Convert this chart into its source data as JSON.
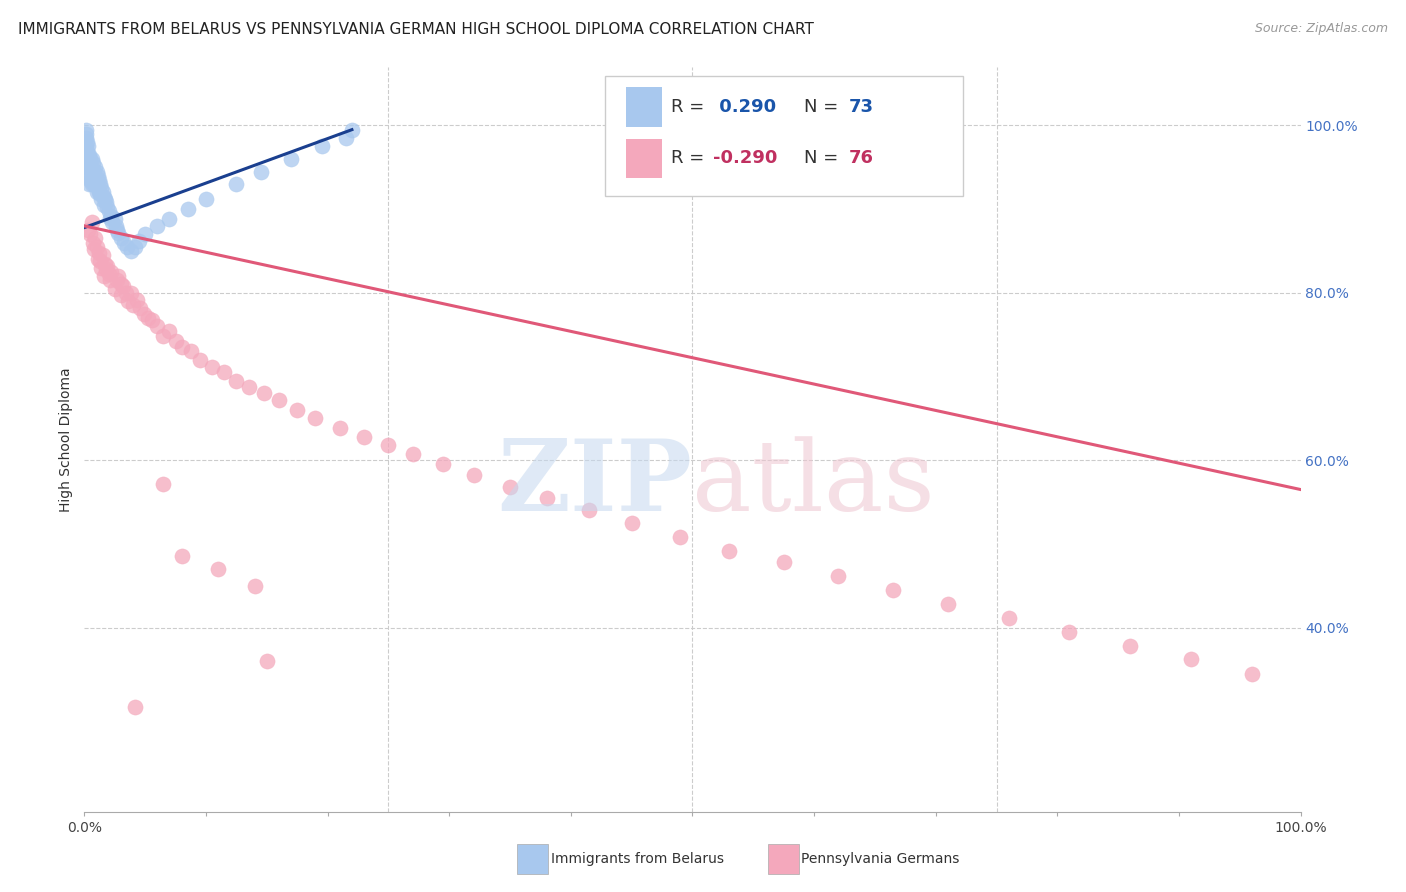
{
  "title": "IMMIGRANTS FROM BELARUS VS PENNSYLVANIA GERMAN HIGH SCHOOL DIPLOMA CORRELATION CHART",
  "source": "Source: ZipAtlas.com",
  "ylabel": "High School Diploma",
  "blue_color": "#A8C8EE",
  "pink_color": "#F4A8BC",
  "blue_line_color": "#1A3F8F",
  "pink_line_color": "#E05878",
  "watermark_zip_color": "#C8D8EE",
  "watermark_atlas_color": "#EEC8D4",
  "grid_color": "#CCCCCC",
  "background_color": "#FFFFFF",
  "right_tick_color": "#4472C4",
  "legend_r_color": "#333333",
  "legend_val_blue_color": "#1A55AA",
  "legend_val_pink_color": "#C03060",
  "title_fontsize": 11,
  "tick_fontsize": 10,
  "ylabel_fontsize": 10,
  "blue_line_x": [
    0.0,
    0.22
  ],
  "blue_line_y": [
    0.878,
    0.995
  ],
  "pink_line_x": [
    0.0,
    1.0
  ],
  "pink_line_y": [
    0.88,
    0.565
  ],
  "xlim": [
    0.0,
    1.0
  ],
  "ylim": [
    0.18,
    1.07
  ],
  "ytick_vals": [
    1.0,
    0.8,
    0.6,
    0.4
  ],
  "ytick_labels": [
    "100.0%",
    "80.0%",
    "60.0%",
    "40.0%"
  ],
  "xtick_vals": [
    0.0,
    0.5,
    1.0
  ],
  "xtick_labels": [
    "0.0%",
    "",
    "100.0%"
  ],
  "blue_N": 73,
  "pink_N": 76,
  "blue_R": "0.290",
  "pink_R": "-0.290",
  "blue_scatter_x": [
    0.0005,
    0.001,
    0.001,
    0.001,
    0.001,
    0.001,
    0.0015,
    0.0015,
    0.002,
    0.002,
    0.002,
    0.002,
    0.003,
    0.003,
    0.003,
    0.003,
    0.004,
    0.004,
    0.004,
    0.005,
    0.005,
    0.005,
    0.006,
    0.006,
    0.006,
    0.007,
    0.007,
    0.008,
    0.008,
    0.009,
    0.009,
    0.01,
    0.01,
    0.01,
    0.011,
    0.011,
    0.012,
    0.012,
    0.013,
    0.013,
    0.014,
    0.014,
    0.015,
    0.016,
    0.016,
    0.017,
    0.018,
    0.019,
    0.02,
    0.021,
    0.022,
    0.023,
    0.025,
    0.026,
    0.027,
    0.028,
    0.03,
    0.033,
    0.035,
    0.038,
    0.042,
    0.045,
    0.05,
    0.06,
    0.07,
    0.085,
    0.1,
    0.125,
    0.145,
    0.17,
    0.195,
    0.215,
    0.22
  ],
  "blue_scatter_y": [
    0.97,
    0.995,
    0.985,
    0.975,
    0.96,
    0.95,
    0.99,
    0.97,
    0.98,
    0.97,
    0.96,
    0.945,
    0.975,
    0.965,
    0.955,
    0.94,
    0.965,
    0.95,
    0.93,
    0.96,
    0.95,
    0.935,
    0.96,
    0.945,
    0.93,
    0.955,
    0.94,
    0.945,
    0.93,
    0.95,
    0.935,
    0.945,
    0.935,
    0.92,
    0.94,
    0.925,
    0.935,
    0.92,
    0.93,
    0.918,
    0.925,
    0.912,
    0.92,
    0.915,
    0.905,
    0.912,
    0.908,
    0.902,
    0.898,
    0.89,
    0.892,
    0.885,
    0.888,
    0.88,
    0.875,
    0.872,
    0.865,
    0.86,
    0.855,
    0.85,
    0.855,
    0.862,
    0.87,
    0.88,
    0.888,
    0.9,
    0.912,
    0.93,
    0.945,
    0.96,
    0.975,
    0.985,
    0.995
  ],
  "pink_scatter_x": [
    0.003,
    0.005,
    0.006,
    0.007,
    0.008,
    0.009,
    0.01,
    0.011,
    0.012,
    0.013,
    0.014,
    0.015,
    0.016,
    0.017,
    0.018,
    0.019,
    0.02,
    0.021,
    0.022,
    0.025,
    0.027,
    0.028,
    0.03,
    0.03,
    0.032,
    0.034,
    0.036,
    0.038,
    0.04,
    0.043,
    0.046,
    0.049,
    0.052,
    0.056,
    0.06,
    0.065,
    0.07,
    0.075,
    0.08,
    0.088,
    0.095,
    0.105,
    0.115,
    0.125,
    0.135,
    0.148,
    0.16,
    0.175,
    0.19,
    0.21,
    0.23,
    0.25,
    0.27,
    0.295,
    0.32,
    0.35,
    0.38,
    0.415,
    0.45,
    0.49,
    0.53,
    0.575,
    0.62,
    0.665,
    0.71,
    0.76,
    0.81,
    0.86,
    0.91,
    0.96,
    0.065,
    0.08,
    0.11,
    0.14,
    0.042,
    0.15
  ],
  "pink_scatter_y": [
    0.875,
    0.87,
    0.885,
    0.86,
    0.852,
    0.865,
    0.855,
    0.84,
    0.848,
    0.838,
    0.83,
    0.845,
    0.82,
    0.835,
    0.828,
    0.832,
    0.822,
    0.815,
    0.825,
    0.805,
    0.815,
    0.82,
    0.81,
    0.798,
    0.808,
    0.8,
    0.79,
    0.8,
    0.785,
    0.792,
    0.782,
    0.775,
    0.77,
    0.768,
    0.76,
    0.748,
    0.755,
    0.742,
    0.735,
    0.73,
    0.72,
    0.712,
    0.705,
    0.695,
    0.688,
    0.68,
    0.672,
    0.66,
    0.65,
    0.638,
    0.628,
    0.618,
    0.608,
    0.595,
    0.582,
    0.568,
    0.555,
    0.54,
    0.525,
    0.508,
    0.492,
    0.478,
    0.462,
    0.445,
    0.428,
    0.412,
    0.395,
    0.378,
    0.362,
    0.345,
    0.572,
    0.485,
    0.47,
    0.45,
    0.305,
    0.36
  ]
}
